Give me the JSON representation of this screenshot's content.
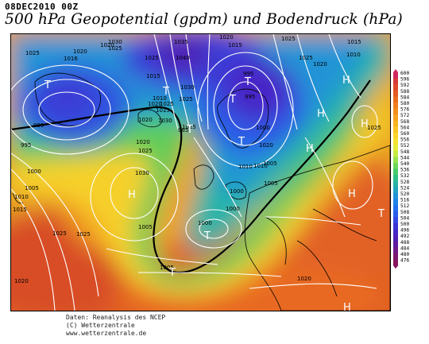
{
  "header": {
    "datetime": "08DEC2010 00Z",
    "title": "500 hPa Geopotential (gpdm) und Bodendruck (hPa)"
  },
  "credits": {
    "line1": "Daten: Reanalysis des NCEP",
    "line2": "(C) Wetterzentrale",
    "line3": "www.wetterzentrale.de"
  },
  "legend": {
    "unit": "gpdm",
    "levels": [
      "600",
      "596",
      "592",
      "588",
      "584",
      "580",
      "576",
      "572",
      "568",
      "564",
      "560",
      "556",
      "552",
      "548",
      "544",
      "540",
      "536",
      "532",
      "528",
      "524",
      "520",
      "516",
      "512",
      "508",
      "504",
      "500",
      "496",
      "492",
      "488",
      "484",
      "480",
      "476"
    ],
    "colors": [
      "#d0285c",
      "#d83a3a",
      "#e04a2a",
      "#e55a22",
      "#ea6c1e",
      "#ee7e1c",
      "#f2901c",
      "#f5a21e",
      "#f8b420",
      "#fac424",
      "#fcd42a",
      "#f8e232",
      "#e6ec3a",
      "#c6ec44",
      "#9ae44e",
      "#6cd858",
      "#46cc6a",
      "#30c088",
      "#28b2a6",
      "#22a4c2",
      "#2094d8",
      "#2082e6",
      "#2270ee",
      "#2a5cea",
      "#3448e0",
      "#3c36d4",
      "#4428c6",
      "#5020b4",
      "#601c9e",
      "#6e1a88",
      "#7a1872",
      "#86165e"
    ]
  },
  "map": {
    "isobar_labels": [
      "1025",
      "1020",
      "1016",
      "1030",
      "1020",
      "1025",
      "1025",
      "1035",
      "1040",
      "1020",
      "1015",
      "1025",
      "995",
      "1015",
      "1030",
      "1025",
      "1010",
      "1020",
      "1015",
      "995",
      "1000",
      "1005",
      "1010",
      "1025",
      "1020",
      "1015",
      "1010",
      "985",
      "1000",
      "1020",
      "1025",
      "1000",
      "1005",
      "1010",
      "1020",
      "1025",
      "1030",
      "1025",
      "1030",
      "1000",
      "1025",
      "1005",
      "1010",
      "1020",
      "1015",
      "1005",
      "990",
      "995",
      "1000",
      "1005",
      "1025",
      "1020",
      "1020",
      "1025"
    ],
    "symbols": [
      "T",
      "T",
      "T",
      "T",
      "T",
      "H",
      "T",
      "H",
      "H",
      "T",
      "H",
      "H",
      "H",
      "H",
      "T",
      "T"
    ]
  }
}
